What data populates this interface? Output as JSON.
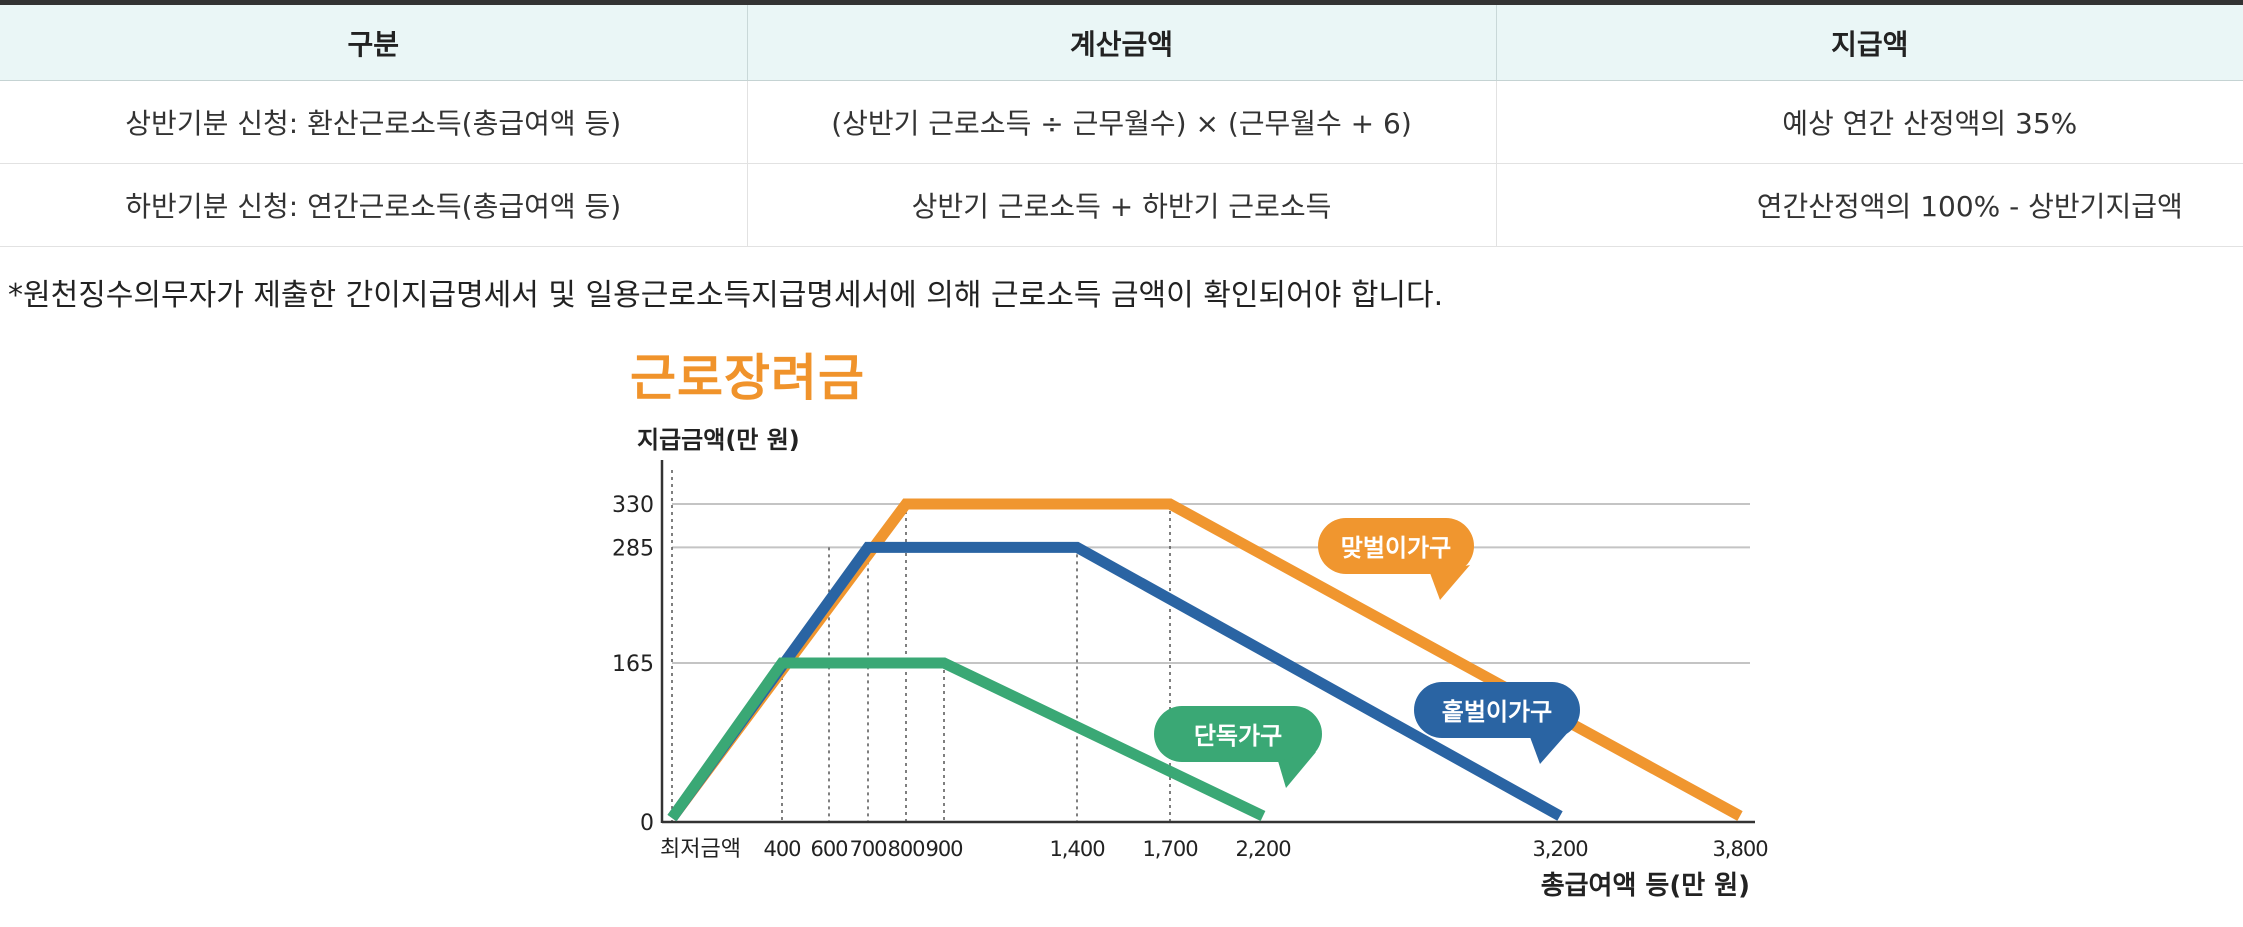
{
  "table": {
    "headers": [
      "구분",
      "계산금액",
      "지급액"
    ],
    "rows": [
      [
        "상반기분 신청: 환산근로소득(총급여액 등)",
        "(상반기 근로소득 ÷ 근무월수) × (근무월수 + 6)",
        "예상 연간 산정액의 35%"
      ],
      [
        "하반기분 신청: 연간근로소득(총급여액 등)",
        "상반기 근로소득 + 하반기 근로소득",
        "연간산정액의 100% - 상반기지급액"
      ]
    ]
  },
  "footnote": "*원천징수의무자가 제출한 간이지급명세서 및 일용근로소득지급명세서에 의해 근로소득 금액이 확인되어야 합니다.",
  "chart_data": {
    "type": "line",
    "title": "근로장려금",
    "ylabel": "지급금액(만 원)",
    "xlabel": "총급여액 등(만 원)",
    "ylim": [
      0,
      330
    ],
    "y_ticks": [
      "330",
      "285",
      "165",
      "0"
    ],
    "y_tick_values": [
      330,
      285,
      165,
      0
    ],
    "x_ticks": [
      "최저금액",
      "400",
      "600",
      "700",
      "800",
      "900",
      "1,400",
      "1,700",
      "2,200",
      "3,200",
      "3,800"
    ],
    "grid": "horizontal lines at 330, 285, 165; dotted vertical guides at breakpoints",
    "series": [
      {
        "name": "맞벌이가구",
        "color": "#f0962f",
        "points": [
          [
            "최저금액",
            0
          ],
          [
            "800",
            330
          ],
          [
            "1,700",
            330
          ],
          [
            "3,800",
            0
          ]
        ]
      },
      {
        "name": "홑벌이가구",
        "color": "#2a64a3",
        "points": [
          [
            "최저금액",
            0
          ],
          [
            "700",
            285
          ],
          [
            "1,400",
            285
          ],
          [
            "3,200",
            0
          ]
        ]
      },
      {
        "name": "단독가구",
        "color": "#3aa875",
        "points": [
          [
            "최저금액",
            0
          ],
          [
            "400",
            165
          ],
          [
            "900",
            165
          ],
          [
            "2,200",
            0
          ]
        ]
      }
    ]
  }
}
